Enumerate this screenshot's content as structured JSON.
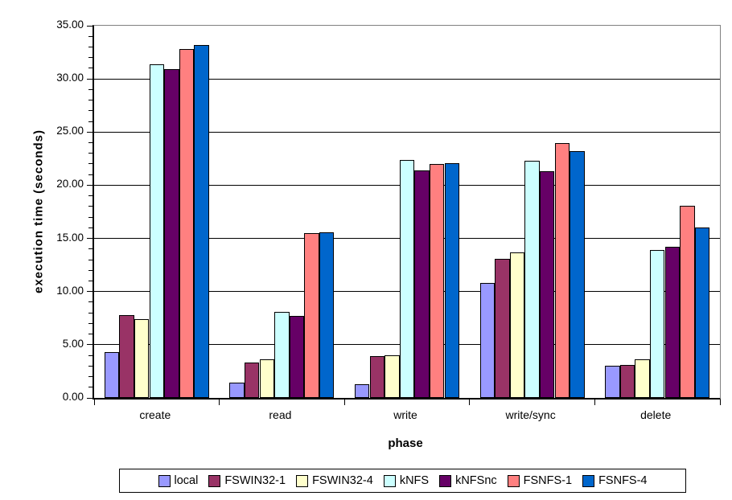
{
  "chart_data": {
    "type": "bar",
    "title": "",
    "xlabel": "phase",
    "ylabel": "execution time (seconds)",
    "categories": [
      "create",
      "read",
      "write",
      "write/sync",
      "delete"
    ],
    "series": [
      {
        "name": "local",
        "color": "#9999FF",
        "values": [
          4.3,
          1.4,
          1.3,
          10.8,
          3.0
        ]
      },
      {
        "name": "FSWIN32-1",
        "color": "#993366",
        "values": [
          7.8,
          3.3,
          3.9,
          13.1,
          3.1
        ]
      },
      {
        "name": "FSWIN32-4",
        "color": "#FFFFCC",
        "values": [
          7.4,
          3.6,
          4.0,
          13.7,
          3.6
        ]
      },
      {
        "name": "kNFS",
        "color": "#CCFFFF",
        "values": [
          31.4,
          8.1,
          22.4,
          22.3,
          13.9
        ]
      },
      {
        "name": "kNFSnc",
        "color": "#660066",
        "values": [
          30.9,
          7.7,
          21.4,
          21.3,
          14.2
        ]
      },
      {
        "name": "FSNFS-1",
        "color": "#FF8080",
        "values": [
          32.8,
          15.5,
          22.0,
          24.0,
          18.1
        ]
      },
      {
        "name": "FSNFS-4",
        "color": "#0066CC",
        "values": [
          33.2,
          15.6,
          22.1,
          23.2,
          16.0
        ]
      }
    ],
    "ylim": [
      0,
      35
    ],
    "ytick_step": 5,
    "ytick_minor_step": 1,
    "ytick_labels": [
      "0.00",
      "5.00",
      "10.00",
      "15.00",
      "20.00",
      "25.00",
      "30.00",
      "35.00"
    ],
    "grid": true,
    "legend_position": "bottom",
    "plot_border_color": "#808080",
    "gridline_color": "#000000",
    "background_color": "#FFFFFF"
  }
}
